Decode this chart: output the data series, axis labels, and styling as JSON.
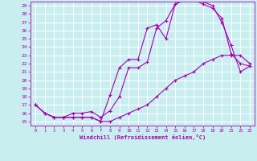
{
  "xlabel": "Windchill (Refroidissement éolien,°C)",
  "bg_color": "#c8eef0",
  "line_color": "#aa00aa",
  "grid_color": "#ffffff",
  "xlim": [
    -0.5,
    23.5
  ],
  "ylim": [
    14.5,
    29.5
  ],
  "xticks": [
    0,
    1,
    2,
    3,
    4,
    5,
    6,
    7,
    8,
    9,
    10,
    11,
    12,
    13,
    14,
    15,
    16,
    17,
    18,
    19,
    20,
    21,
    22,
    23
  ],
  "yticks": [
    15,
    16,
    17,
    18,
    19,
    20,
    21,
    22,
    23,
    24,
    25,
    26,
    27,
    28,
    29
  ],
  "line1_x": [
    0,
    1,
    2,
    3,
    4,
    5,
    6,
    7,
    8,
    9,
    10,
    11,
    12,
    13,
    14,
    15,
    16,
    17,
    18,
    19,
    20,
    21,
    22,
    23
  ],
  "line1_y": [
    17,
    16,
    15.5,
    15.5,
    15.5,
    15.5,
    15.5,
    15,
    18.2,
    21.5,
    22.5,
    22.5,
    26.3,
    26.7,
    25,
    29.2,
    29.7,
    29.7,
    29.2,
    28.7,
    27.5,
    23.2,
    22,
    21.7
  ],
  "line2_x": [
    0,
    1,
    2,
    3,
    4,
    5,
    6,
    7,
    8,
    9,
    10,
    11,
    12,
    13,
    14,
    15,
    16,
    17,
    18,
    19,
    20,
    21,
    22,
    23
  ],
  "line2_y": [
    17,
    16,
    15.5,
    15.5,
    16,
    16,
    16.2,
    15.5,
    16.3,
    18,
    21.5,
    21.5,
    22.2,
    26.3,
    27.2,
    29.2,
    29.7,
    29.7,
    29.5,
    29,
    27,
    24.2,
    21,
    21.7
  ],
  "line3_x": [
    0,
    1,
    2,
    3,
    4,
    5,
    6,
    7,
    8,
    9,
    10,
    11,
    12,
    13,
    14,
    15,
    16,
    17,
    18,
    19,
    20,
    21,
    22,
    23
  ],
  "line3_y": [
    17,
    16,
    15.5,
    15.5,
    15.5,
    15.5,
    15.5,
    15,
    15,
    15.5,
    16,
    16.5,
    17,
    18,
    19,
    20,
    20.5,
    21,
    22,
    22.5,
    23,
    23,
    23,
    22
  ]
}
